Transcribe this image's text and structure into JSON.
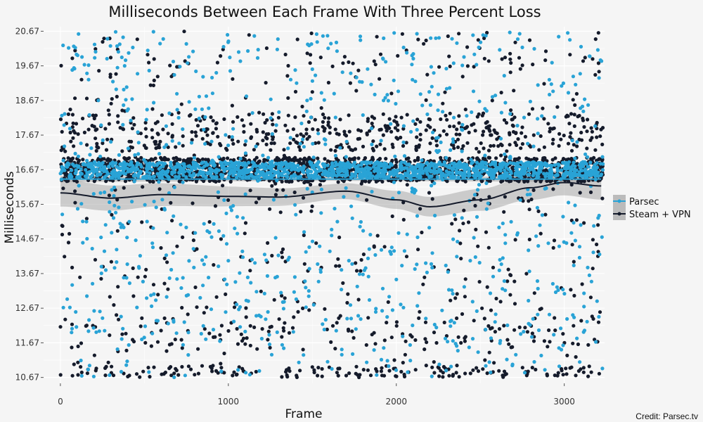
{
  "chart_data": {
    "type": "scatter",
    "title": "Milliseconds Between Each Frame With Three Percent Loss",
    "xlabel": "Frame",
    "ylabel": "Milliseconds",
    "xlim": [
      -100,
      3240
    ],
    "ylim": [
      10.5,
      20.8
    ],
    "x_ticks": [
      0,
      1000,
      2000,
      3000
    ],
    "y_ticks": [
      10.67,
      11.67,
      12.67,
      13.67,
      14.67,
      15.67,
      16.67,
      17.67,
      18.67,
      19.67,
      20.67
    ],
    "x_tick_labels": [
      "0",
      "1000",
      "2000",
      "3000"
    ],
    "y_tick_labels": [
      "10.67",
      "11.67",
      "12.67",
      "13.67",
      "14.67",
      "15.67",
      "16.67",
      "17.67",
      "18.67",
      "19.67",
      "20.67"
    ],
    "grid": true,
    "legend_position": "right",
    "x_max_frame": 3230,
    "series": [
      {
        "name": "Parsec",
        "color": "#29a3d6",
        "baseline_ms": 16.67,
        "smooth_y": 16.4,
        "smooth_band": 0.05
      },
      {
        "name": "Steam + VPN",
        "color": "#151b2b",
        "baseline_ms": 16.67,
        "smooth": [
          [
            0,
            16.0
          ],
          [
            300,
            15.85
          ],
          [
            600,
            15.95
          ],
          [
            1000,
            15.9
          ],
          [
            1300,
            15.88
          ],
          [
            1700,
            16.05
          ],
          [
            2000,
            15.8
          ],
          [
            2200,
            15.6
          ],
          [
            2500,
            15.8
          ],
          [
            2800,
            16.15
          ],
          [
            3000,
            16.3
          ],
          [
            3220,
            16.2
          ]
        ],
        "smooth_band": 0.22
      }
    ],
    "band_color": "#999999",
    "credit": "Credit: Parsec.tv"
  }
}
